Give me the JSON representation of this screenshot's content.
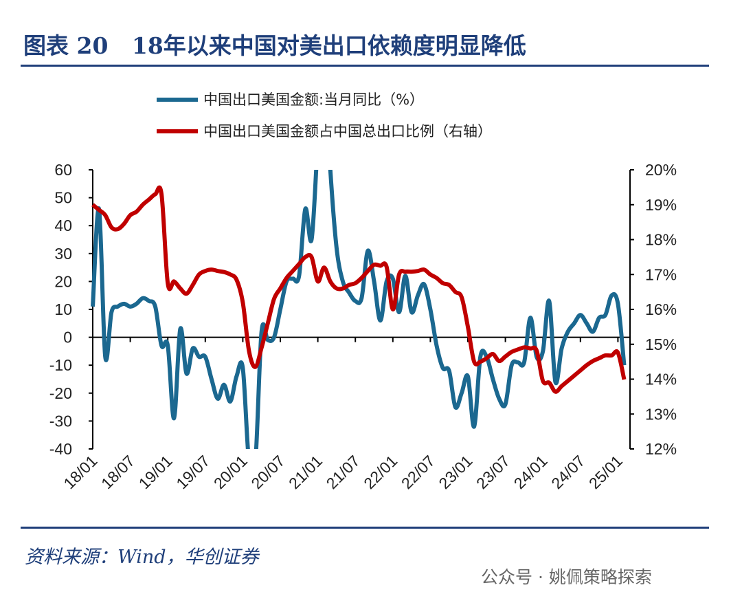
{
  "header": {
    "title": "图表 20   18年以来中国对美出口依赖度明显降低"
  },
  "footer": {
    "source": "资料来源：Wind，华创证券",
    "watermark": "公众号 · 姚佩策略探索"
  },
  "colors": {
    "rule": "#1f3f7a",
    "blue_series": "#1b6890",
    "red_series": "#c00000"
  },
  "chart_data": {
    "type": "line",
    "title": "",
    "x_tick_labels": [
      "18/01",
      "18/07",
      "19/01",
      "19/07",
      "20/01",
      "20/07",
      "21/01",
      "21/07",
      "22/01",
      "22/07",
      "23/01",
      "23/07",
      "24/01",
      "24/07",
      "25/01"
    ],
    "y_left": {
      "ylim": [
        -40,
        60
      ],
      "ticks": [
        60,
        50,
        40,
        30,
        20,
        10,
        0,
        -10,
        -20,
        -30,
        -40
      ]
    },
    "y_right": {
      "ylim": [
        12,
        20
      ],
      "ticks": [
        "20%",
        "19%",
        "18%",
        "17%",
        "16%",
        "15%",
        "14%",
        "13%",
        "12%"
      ]
    },
    "grid": false,
    "legend_placement": "top-center",
    "x": [
      "2018-01",
      "2018-02",
      "2018-03",
      "2018-04",
      "2018-05",
      "2018-06",
      "2018-07",
      "2018-08",
      "2018-09",
      "2018-10",
      "2018-11",
      "2018-12",
      "2019-01",
      "2019-02",
      "2019-03",
      "2019-04",
      "2019-05",
      "2019-06",
      "2019-07",
      "2019-08",
      "2019-09",
      "2019-10",
      "2019-11",
      "2019-12",
      "2020-01",
      "2020-02",
      "2020-03",
      "2020-04",
      "2020-05",
      "2020-06",
      "2020-07",
      "2020-08",
      "2020-09",
      "2020-10",
      "2020-11",
      "2020-12",
      "2021-01",
      "2021-02",
      "2021-03",
      "2021-04",
      "2021-05",
      "2021-06",
      "2021-07",
      "2021-08",
      "2021-09",
      "2021-10",
      "2021-11",
      "2021-12",
      "2022-01",
      "2022-02",
      "2022-03",
      "2022-04",
      "2022-05",
      "2022-06",
      "2022-07",
      "2022-08",
      "2022-09",
      "2022-10",
      "2022-11",
      "2022-12",
      "2023-01",
      "2023-02",
      "2023-03",
      "2023-04",
      "2023-05",
      "2023-06",
      "2023-07",
      "2023-08",
      "2023-09",
      "2023-10",
      "2023-11",
      "2023-12",
      "2024-01",
      "2024-02",
      "2024-03",
      "2024-04",
      "2024-05",
      "2024-06",
      "2024-07",
      "2024-08",
      "2024-09",
      "2024-10",
      "2024-11",
      "2024-12",
      "2025-01",
      "2025-02"
    ],
    "series": [
      {
        "name": "中国出口美国金额:当月同比（%）",
        "axis": "left",
        "color": "#1b6890",
        "values": [
          11,
          46,
          -7,
          9,
          11,
          12,
          11,
          12,
          14,
          13,
          11,
          -3,
          -3,
          -29,
          3,
          -13,
          -4,
          -7,
          -7,
          -15,
          -22,
          -17,
          -23,
          -14,
          -11,
          -45,
          -45,
          2,
          -1,
          0,
          10,
          20,
          21,
          22,
          46,
          35,
          70,
          100,
          60,
          32,
          20,
          16,
          13,
          14,
          31,
          20,
          6,
          20,
          21,
          9,
          22,
          9,
          15,
          19,
          10,
          -3,
          -11,
          -12,
          -25,
          -20,
          -14,
          -32,
          -7,
          -7,
          -15,
          -22,
          -24,
          -10,
          -9,
          -9,
          7,
          -7,
          -5,
          13,
          -16,
          -4,
          2,
          5,
          8,
          5,
          2,
          7,
          8,
          15,
          12,
          -10
        ]
      },
      {
        "name": "中国出口美国金额占中国总出口比例（右轴）",
        "axis": "right",
        "color": "#c00000",
        "values": [
          19.0,
          18.85,
          18.7,
          18.35,
          18.3,
          18.45,
          18.7,
          18.8,
          19.0,
          19.15,
          19.3,
          19.3,
          16.75,
          16.8,
          16.6,
          16.45,
          16.7,
          17.0,
          17.1,
          17.14,
          17.1,
          17.07,
          17.0,
          16.85,
          16.2,
          14.8,
          14.35,
          14.9,
          15.6,
          16.3,
          16.6,
          16.9,
          17.1,
          17.3,
          17.5,
          17.5,
          16.8,
          17.2,
          16.8,
          16.6,
          16.6,
          16.7,
          16.75,
          16.9,
          17.1,
          17.28,
          17.25,
          17.22,
          16.0,
          17.0,
          17.08,
          17.08,
          17.1,
          17.14,
          17.0,
          16.9,
          16.75,
          16.7,
          16.5,
          16.35,
          15.5,
          14.5,
          14.5,
          14.6,
          14.72,
          14.52,
          14.65,
          14.78,
          14.85,
          14.91,
          14.88,
          14.82,
          13.95,
          13.9,
          13.64,
          13.8,
          13.95,
          14.1,
          14.25,
          14.4,
          14.52,
          14.6,
          14.68,
          14.68,
          14.76,
          13.99
        ]
      }
    ]
  }
}
